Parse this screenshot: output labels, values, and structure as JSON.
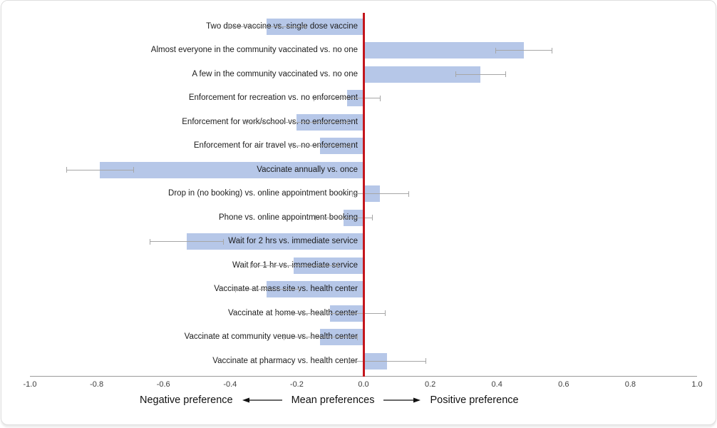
{
  "chart_data": {
    "type": "bar",
    "orientation": "horizontal-diverging",
    "title": "",
    "xlabel": "Mean preferences",
    "xlim": [
      -1.0,
      1.0
    ],
    "grid": false,
    "categories": [
      "Two dose vaccine vs. single dose vaccine",
      "Almost everyone in the community vaccinated vs. no one",
      "A few in the community vaccinated vs. no one",
      "Enforcement for recreation vs. no enforcement",
      "Enforcement for work/school vs. no enforcement",
      "Enforcement for air travel vs. no enforcement",
      "Vaccinate annually vs. once",
      "Drop in (no booking) vs. online appointment booking",
      "Phone vs. online appointment booking",
      "Wait for 2 hrs vs. immediate service",
      "Wait for 1 hr vs. immediate service",
      "Vaccinate at mass site vs. health center",
      "Vaccinate at home vs. health center",
      "Vaccinate at community venue vs. health center",
      "Vaccinate at pharmacy vs. health center"
    ],
    "values": [
      -0.29,
      0.48,
      0.35,
      -0.05,
      -0.2,
      -0.13,
      -0.79,
      0.05,
      -0.06,
      -0.53,
      -0.21,
      -0.29,
      -0.1,
      -0.13,
      0.07
    ],
    "errors": [
      0.115,
      0.085,
      0.075,
      0.1,
      0.15,
      0.09,
      0.1,
      0.085,
      0.085,
      0.11,
      0.13,
      0.095,
      0.165,
      0.11,
      0.115
    ],
    "xticks": [
      -1.0,
      -0.8,
      -0.6,
      -0.4,
      -0.2,
      0.0,
      0.2,
      0.4,
      0.6,
      0.8,
      1.0
    ],
    "tick_labels": [
      "-1.0",
      "-0.8",
      "-0.6",
      "-0.4",
      "-0.2",
      "0.0",
      "0.2",
      "0.4",
      "0.6",
      "0.8",
      "1.0"
    ],
    "bar_color": "#b6c7e8",
    "error_color": "#a6a6a6",
    "zero_line_color": "#c3161c",
    "annotations": {
      "left": "Negative preference",
      "center": "Mean preferences",
      "right": "Positive preference"
    }
  }
}
